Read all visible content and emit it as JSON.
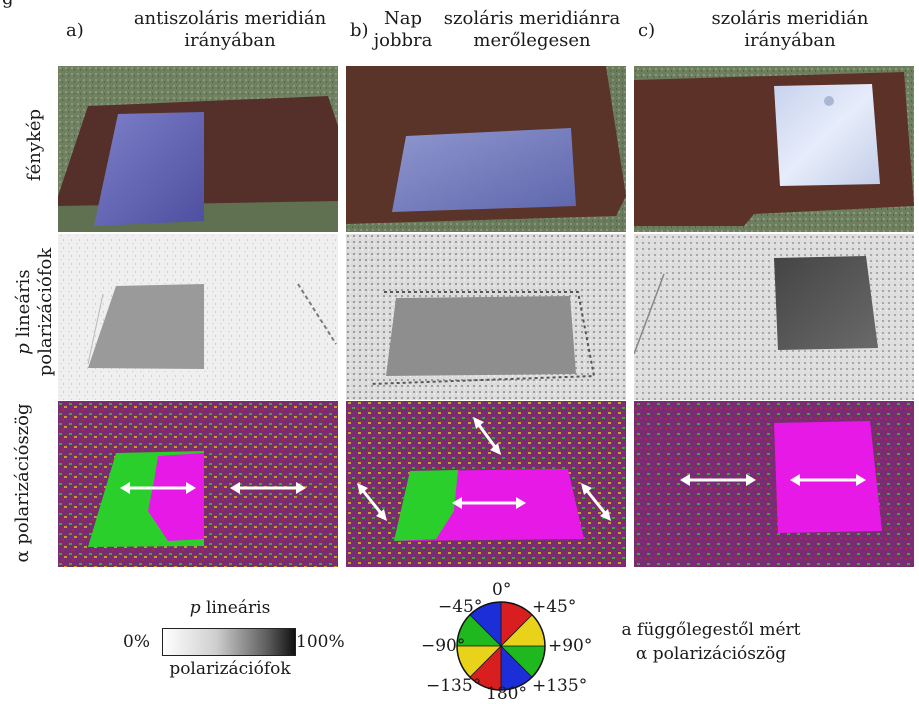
{
  "header_top_partial": "g",
  "columns": [
    {
      "letter": "a)",
      "title_line1": "antiszoláris meridián",
      "title_line2": "irányában"
    },
    {
      "letter": "b)",
      "sun_line1": "Nap",
      "sun_line2": "jobbra",
      "title_line1": "szoláris meridiánra",
      "title_line2": "merőlegesen"
    },
    {
      "letter": "c)",
      "title_line1": "szoláris meridián",
      "title_line2": "irányában"
    }
  ],
  "rows": [
    {
      "label": "fénykép"
    },
    {
      "label_p": "p",
      "label_line1": "lineáris",
      "label_line2": "polarizációfok"
    },
    {
      "label_alpha": "α",
      "label_text": "polarizációszög"
    }
  ],
  "legend_p": {
    "title_p": "p",
    "title_rest": "lineáris",
    "min_label": "0%",
    "max_label": "100%",
    "subtitle": "polarizációfok"
  },
  "legend_angle": {
    "labels": {
      "top": "0°",
      "top_left": "−45°",
      "top_right": "+45°",
      "left": "−90°",
      "right": "+90°",
      "bottom_left": "−135°",
      "bottom": "180°",
      "bottom_right": "+135°"
    },
    "description_line1": "a függőlegestől mért",
    "description_line2": "α polarizációszög",
    "colors": {
      "red": "#d81e1e",
      "yellow": "#e8d21a",
      "green": "#1fb81f",
      "blue": "#1c2ed8"
    }
  },
  "colors": {
    "cloth": "#4a2a22",
    "grass": "#6b7d58",
    "magenta": "#e619e6",
    "green_field": "#2bcf2b"
  }
}
